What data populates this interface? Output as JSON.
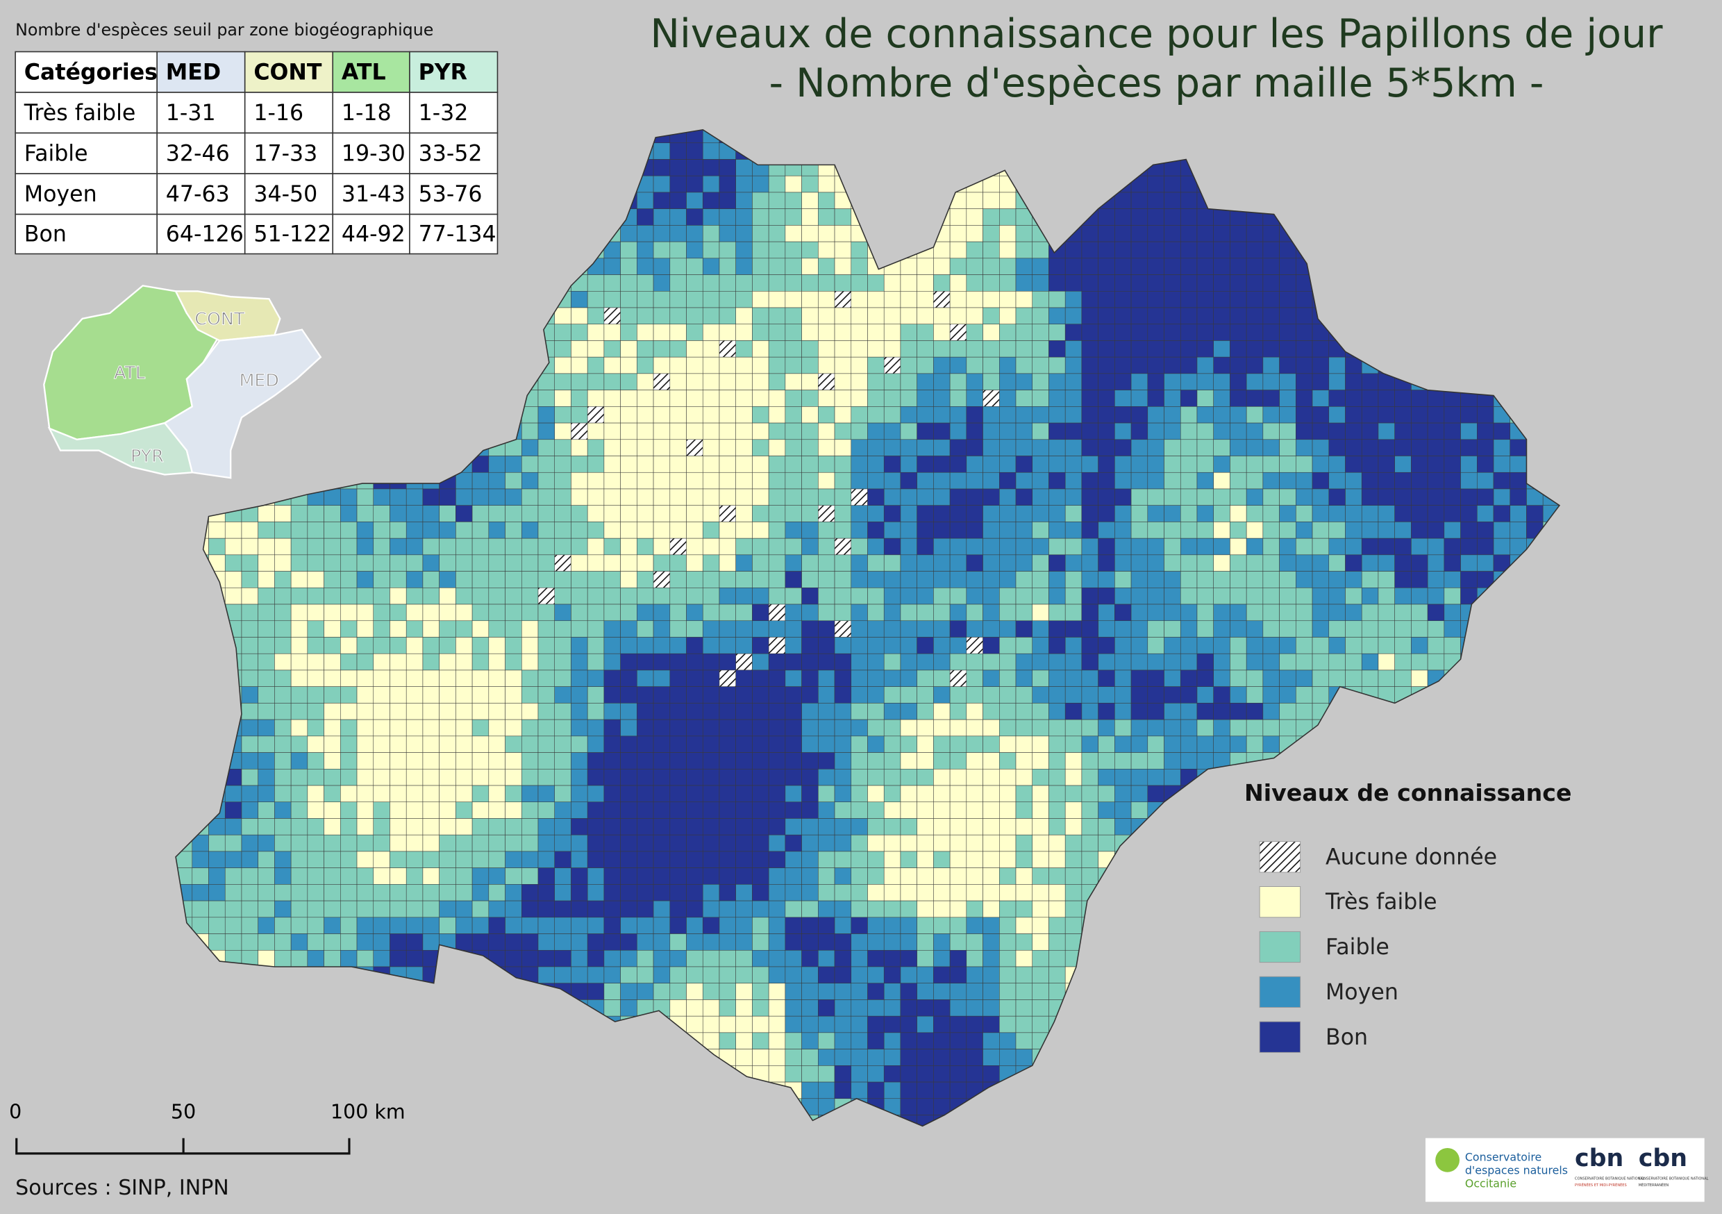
{
  "title": [
    "Niveaux de connaissance pour les Papillons de jour",
    "- Nombre d'espèces par maille 5*5km -"
  ],
  "threshold_table": {
    "caption": "Nombre d'espèces seuil par zone biogéographique",
    "header": [
      "Catégories",
      "MED",
      "CONT",
      "ATL",
      "PYR"
    ],
    "header_colors": [
      "#ffffff",
      "#dde6f2",
      "#eef2c8",
      "#a8e6a0",
      "#c8eedd"
    ],
    "rows": [
      [
        "Très faible",
        "1-31",
        "1-16",
        "1-18",
        "1-32"
      ],
      [
        "Faible",
        "32-46",
        "17-33",
        "19-30",
        "33-52"
      ],
      [
        "Moyen",
        "47-63",
        "34-50",
        "31-43",
        "53-76"
      ],
      [
        "Bon",
        "64-126",
        "51-122",
        "44-92",
        "77-134"
      ]
    ]
  },
  "inset": {
    "labels": [
      "CONT",
      "ATL",
      "MED",
      "PYR"
    ]
  },
  "legend": {
    "title": "Niveaux de connaissance",
    "items": [
      {
        "label": "Aucune donnée",
        "color": "#ffffff",
        "hatch": true
      },
      {
        "label": "Très faible",
        "color": "#ffffcc"
      },
      {
        "label": "Faible",
        "color": "#82cfbb"
      },
      {
        "label": "Moyen",
        "color": "#3690c0"
      },
      {
        "label": "Bon",
        "color": "#253494"
      }
    ]
  },
  "scale_bar": {
    "labels": [
      "0",
      "50",
      "100 km"
    ]
  },
  "sources": "Sources : SINP, INPN",
  "logos": {
    "cen": [
      "Conservatoire",
      "d'espaces naturels",
      "Occitanie"
    ],
    "cbn": [
      "cbn",
      "cbn"
    ],
    "cbn_sub": [
      "CONSERVATOIRE BOTANIQUE NATIONAL",
      "PYRÉNÉES ET MIDI-PYRÉNÉES",
      "CONSERVATOIRE BOTANIQUE NATIONAL",
      "MÉDITERRANÉEN"
    ]
  }
}
